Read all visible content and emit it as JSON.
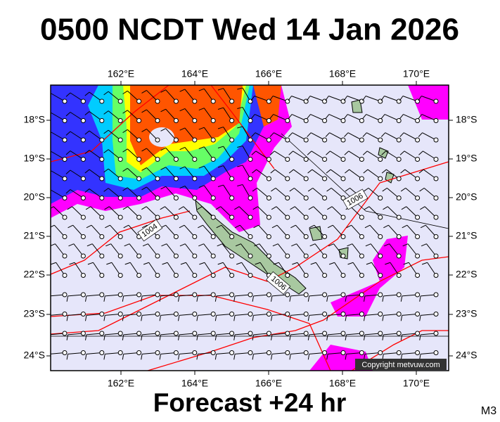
{
  "header": {
    "title": "0500 NCDT Wed 14 Jan 2026"
  },
  "map": {
    "longitude_labels": [
      "162°E",
      "164°E",
      "166°E",
      "168°E",
      "170°E"
    ],
    "latitude_labels": [
      "18°S",
      "19°S",
      "20°S",
      "21°S",
      "22°S",
      "23°S",
      "24°S"
    ],
    "isobar_labels": [
      "1004",
      "1006",
      "1006"
    ],
    "copyright": "Copyright metvuw.com"
  },
  "footer": {
    "forecast": "Forecast +24 hr",
    "code": "M3"
  }
}
